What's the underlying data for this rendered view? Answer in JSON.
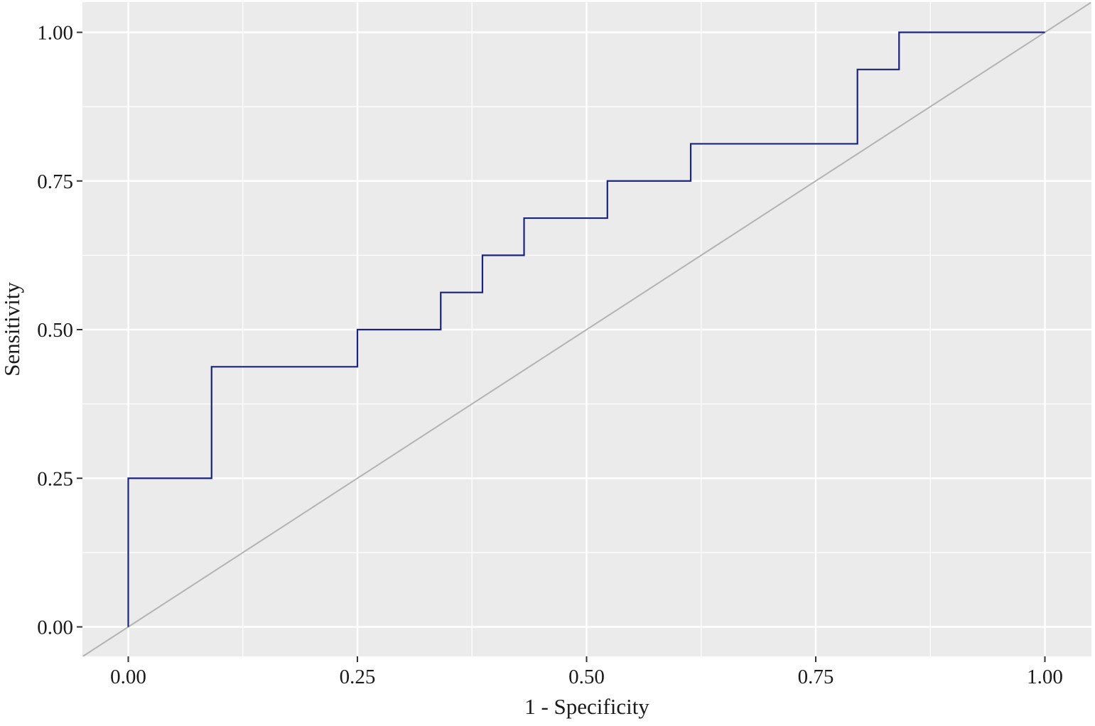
{
  "chart_data": {
    "type": "line",
    "title": "",
    "xlabel": "1 - Specificity",
    "ylabel": "Sensitivity",
    "xlim": [
      -0.05,
      1.05
    ],
    "ylim": [
      -0.05,
      1.05
    ],
    "x_ticks": [
      0,
      0.25,
      0.5,
      0.75,
      1
    ],
    "x_tick_labels": [
      "0.00",
      "0.25",
      "0.50",
      "0.75",
      "1.00"
    ],
    "y_ticks": [
      0,
      0.25,
      0.5,
      0.75,
      1
    ],
    "y_tick_labels": [
      "0.00",
      "0.25",
      "0.50",
      "0.75",
      "1.00"
    ],
    "grid": true,
    "legend": "none",
    "background_color": "#ebebeb",
    "grid_color": "#ffffff",
    "series": [
      {
        "style": "step",
        "color": "#1a237e",
        "x": [
          0,
          0,
          0.0909,
          0.0909,
          0.25,
          0.25,
          0.3409,
          0.3409,
          0.3864,
          0.3864,
          0.4318,
          0.4318,
          0.5227,
          0.5227,
          0.6136,
          0.6136,
          0.7955,
          0.7955,
          0.8409,
          0.8409,
          1.0
        ],
        "y": [
          0,
          0.25,
          0.25,
          0.4375,
          0.4375,
          0.5,
          0.5,
          0.5625,
          0.5625,
          0.625,
          0.625,
          0.6875,
          0.6875,
          0.75,
          0.75,
          0.8125,
          0.8125,
          0.9375,
          0.9375,
          1.0,
          1.0
        ]
      }
    ],
    "reference_line": {
      "color": "#b3b3b3",
      "x": [
        -0.05,
        1.05
      ],
      "y": [
        -0.05,
        1.05
      ]
    }
  }
}
